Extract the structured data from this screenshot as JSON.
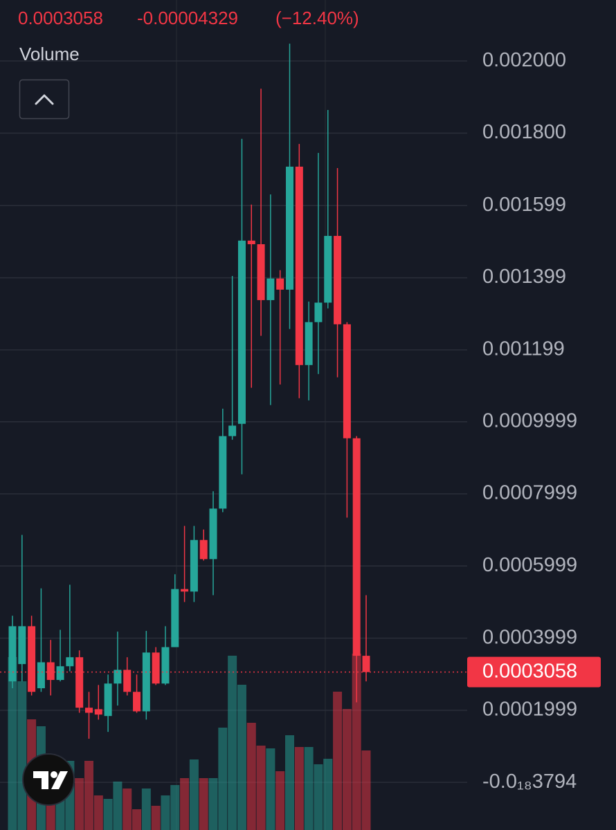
{
  "chart_data": {
    "type": "candlestick",
    "header_price": 0.0003058,
    "change": -4.329e-05,
    "change_label": "(−12.40%)",
    "volume_label": "Volume",
    "up_color": "#26a69a",
    "down_color": "#f23645",
    "ylim": [
      -0.000132,
      0.002169
    ],
    "yticks": [
      {
        "value": 0.002,
        "label": "0.002000"
      },
      {
        "value": 0.0018,
        "label": "0.001800"
      },
      0.001599,
      0.001399,
      0.001199,
      0.0009999,
      0.0007999,
      0.0005999,
      0.0003999,
      0.0001999,
      {
        "value": -3.794e-22,
        "label": "-0.0₁₈3794"
      }
    ],
    "grid": true,
    "last_price": 0.0003058,
    "open": [
      0.00028,
      0.000328,
      0.000433,
      0.000261,
      0.000333,
      0.000284,
      0.000322,
      0.000347,
      0.000207,
      0.000203,
      0.000184,
      0.000274,
      0.000312,
      0.000251,
      0.000197,
      0.00036,
      0.000274,
      0.000375,
      0.000536,
      0.000529,
      0.000672,
      0.000619,
      0.000759,
      0.00096,
      0.000994,
      0.001502,
      0.001492,
      0.001337,
      0.001397,
      0.001366,
      0.001707,
      0.001157,
      0.001276,
      0.00133,
      0.001515,
      0.00127,
      0.000954,
      0.000351
    ],
    "high": [
      0.000462,
      0.000686,
      0.000462,
      0.000538,
      0.000395,
      0.000423,
      0.000548,
      0.000366,
      0.000251,
      0.00027,
      0.000299,
      0.000418,
      0.000347,
      0.000299,
      0.00042,
      0.000375,
      0.000433,
      0.000577,
      0.000711,
      0.000711,
      0.000701,
      0.000807,
      0.001036,
      0.001404,
      0.001784,
      0.001602,
      0.001923,
      0.00163,
      0.00142,
      0.002048,
      0.00177,
      0.001333,
      0.001745,
      0.001864,
      0.001703,
      0.001276,
      0.00096,
      0.000519
    ],
    "low": [
      0.000261,
      0.00028,
      0.000241,
      0.000251,
      0.000241,
      0.00028,
      0.000308,
      0.000193,
      0.000121,
      0.000174,
      0.00014,
      0.000213,
      0.000241,
      0.000193,
      0.000174,
      0.00027,
      0.00027,
      0.000375,
      0.0005,
      0.0005,
      0.000615,
      0.000519,
      0.000749,
      0.00095,
      0.000854,
      0.001094,
      0.001238,
      0.001046,
      0.001103,
      0.001257,
      0.001065,
      0.001059,
      0.001132,
      0.001314,
      0.001123,
      0.000734,
      0.000222,
      0.00028
    ],
    "close": [
      0.000433,
      0.000433,
      0.000251,
      0.000333,
      0.000284,
      0.000322,
      0.000347,
      0.000207,
      0.000193,
      0.000188,
      0.000274,
      0.000312,
      0.000251,
      0.000197,
      0.00036,
      0.000274,
      0.000375,
      0.000536,
      0.000529,
      0.000672,
      0.000619,
      0.000759,
      0.00096,
      0.000989,
      0.001502,
      0.001492,
      0.001337,
      0.001397,
      0.001366,
      0.001707,
      0.001157,
      0.001276,
      0.00133,
      0.001515,
      0.00127,
      0.000954,
      0.000351,
      0.0003058
    ],
    "volume": [
      250,
      215,
      160,
      150,
      110,
      80,
      100,
      75,
      100,
      50,
      45,
      70,
      60,
      30,
      60,
      35,
      50,
      65,
      75,
      102,
      75,
      75,
      148,
      252,
      210,
      155,
      122,
      118,
      85,
      137,
      120,
      120,
      95,
      103,
      200,
      175,
      255,
      115
    ]
  }
}
